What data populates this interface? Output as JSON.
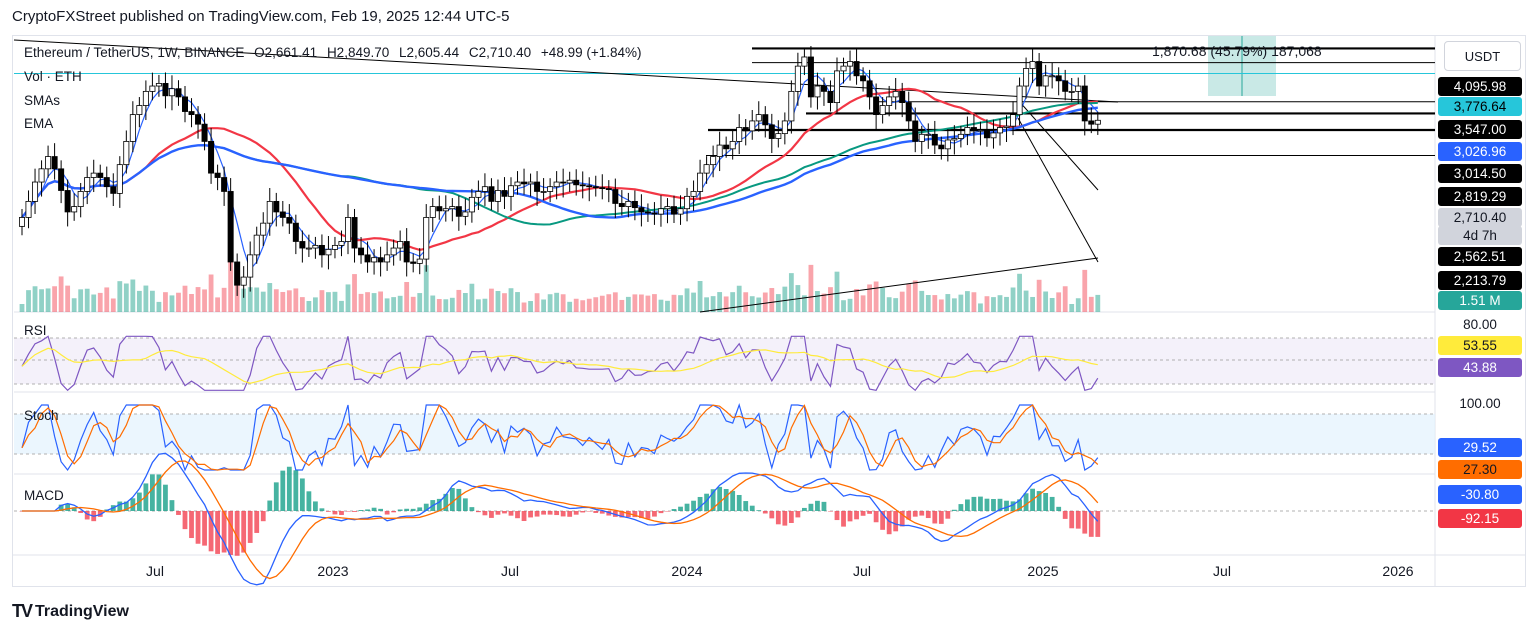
{
  "header": {
    "published": "CryptoFXStreet published on TradingView.com, Feb 19, 2025 12:44 UTC-5"
  },
  "legend": {
    "symbol": "Ethereum / TetherUS, 1W, BINANCE",
    "open": "O2,661.41",
    "high": "H2,849.70",
    "low": "L2,605.44",
    "close": "C2,710.40",
    "change": "+48.99 (+1.84%)",
    "vol": "Vol · ETH",
    "smas": "SMAs",
    "ema": "EMA",
    "up_color": "#089981",
    "down_color": "#f23645"
  },
  "currency_button": "USDT",
  "measure": {
    "text": "1,870.68 (45.79%) 187,068",
    "color": "#b2dfdb"
  },
  "footer": {
    "brand": "TradingView",
    "logo": "TV"
  },
  "price_labels": [
    {
      "text": "4,095.98",
      "bg": "#000000",
      "fg": "#ffffff"
    },
    {
      "text": "3,776.64",
      "bg": "#26c6da",
      "fg": "#000000"
    },
    {
      "text": "3,547.00",
      "bg": "#000000",
      "fg": "#ffffff"
    },
    {
      "text": "3,026.96",
      "bg": "#2962ff",
      "fg": "#ffffff"
    },
    {
      "text": "3,014.50",
      "bg": "#000000",
      "fg": "#ffffff"
    },
    {
      "text": "2,819.29",
      "bg": "#000000",
      "fg": "#ffffff"
    },
    {
      "text": "2,710.40",
      "bg": "#d1d4dc",
      "fg": "#131722"
    },
    {
      "text": "4d 7h",
      "bg": "#d1d4dc",
      "fg": "#131722"
    },
    {
      "text": "2,562.51",
      "bg": "#000000",
      "fg": "#ffffff"
    },
    {
      "text": "2,213.79",
      "bg": "#000000",
      "fg": "#ffffff"
    },
    {
      "text": "1.51 M",
      "bg": "#26a69a",
      "fg": "#ffffff"
    }
  ],
  "panes": {
    "rsi": {
      "title": "RSI",
      "upper": "80.00",
      "ma_value": "53.55",
      "value": "43.88",
      "ma_color": "#ffeb3b",
      "color": "#7e57c2"
    },
    "stoch": {
      "title": "Stoch",
      "upper": "100.00",
      "k_value": "29.52",
      "d_value": "27.30",
      "k_color": "#2962ff",
      "d_color": "#ff6d00"
    },
    "macd": {
      "title": "MACD",
      "macd_value": "-30.80",
      "hist_value": "-92.15",
      "macd_color": "#2962ff",
      "signal_color": "#ff6d00"
    }
  },
  "x_axis": [
    "Jul",
    "2023",
    "Jul",
    "2024",
    "Jul",
    "2025",
    "Jul",
    "2026"
  ],
  "chart_data": {
    "type": "candlestick",
    "interval": "1W",
    "y_scale": "log",
    "close": [
      1550,
      1700,
      1900,
      2050,
      2200,
      2050,
      1810,
      1600,
      1650,
      1800,
      1950,
      2000,
      1950,
      1850,
      1780,
      2100,
      2400,
      2800,
      2950,
      3200,
      3300,
      3350,
      3120,
      3250,
      3100,
      2850,
      2800,
      2650,
      2400,
      2000,
      1950,
      1800,
      1200,
      1050,
      1100,
      1250,
      1400,
      1500,
      1700,
      1600,
      1550,
      1500,
      1350,
      1300,
      1300,
      1320,
      1250,
      1290,
      1320,
      1350,
      1550,
      1300,
      1250,
      1200,
      1230,
      1200,
      1250,
      1300,
      1350,
      1200,
      1190,
      1220,
      1550,
      1650,
      1610,
      1630,
      1650,
      1560,
      1600,
      1740,
      1800,
      1850,
      1700,
      1810,
      1750,
      1860,
      1900,
      1880,
      1900,
      1800,
      1800,
      1850,
      1900,
      1890,
      1920,
      1870,
      1860,
      1850,
      1840,
      1830,
      1820,
      1680,
      1650,
      1700,
      1640,
      1600,
      1590,
      1580,
      1630,
      1650,
      1580,
      1630,
      1750,
      1800,
      2000,
      2100,
      2200,
      2350,
      2300,
      2400,
      2600,
      2550,
      2700,
      2800,
      2640,
      2440,
      2510,
      2700,
      3200,
      3700,
      3900,
      3100,
      3300,
      3200,
      3000,
      3600,
      3700,
      3800,
      3500,
      3400,
      3100,
      2800,
      2950,
      3100,
      3200,
      3000,
      2700,
      2400,
      2500,
      2500,
      2350,
      2300,
      2420,
      2440,
      2500,
      2600,
      2550,
      2560,
      2450,
      2520,
      2600,
      2620,
      2800,
      3300,
      3650,
      3800,
      3300,
      3500,
      3500,
      3400,
      3200,
      3200,
      3300,
      2700,
      2650,
      2710
    ],
    "sma_levels": [
      1600,
      1700,
      1950,
      2100,
      2300,
      2550,
      2650,
      2700,
      2560
    ],
    "horizontal_levels": [
      4095.98,
      3776.64,
      3547.0,
      3014.5,
      2819.29,
      2562.51,
      2213.79
    ],
    "current_price": 2710.4,
    "sma_50": 3026.96,
    "rsi": 43.88,
    "rsi_ma": 53.55,
    "stoch_k": 29.52,
    "stoch_d": 27.3,
    "macd": -30.8,
    "macd_hist": -92.15
  }
}
